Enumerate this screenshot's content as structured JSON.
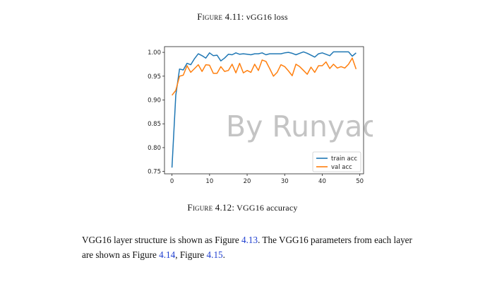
{
  "captions": {
    "top": {
      "label": "Figure 4.11:",
      "text": " vGG16 loss"
    },
    "bottom": {
      "label": "Figure 4.12:",
      "text": " VGG16 accuracy"
    }
  },
  "watermark": "By Runyao",
  "paragraph": {
    "line1_a": "VGG16 layer structure is shown as Figure ",
    "ref1": "4.13",
    "line1_b": ". The VGG16 parameters from each layer",
    "line2_a": "are shown as Figure ",
    "ref2": "4.14",
    "line2_b": ", Figure ",
    "ref3": "4.15",
    "line2_c": "."
  },
  "colors": {
    "train": "#1f77b4",
    "val": "#ff7f0e",
    "link": "#1f3fd0"
  },
  "chart_data": {
    "type": "line",
    "title": "",
    "xlabel": "",
    "ylabel": "",
    "xlim": [
      -2,
      51
    ],
    "ylim": [
      0.745,
      1.012
    ],
    "xticks": [
      0,
      10,
      20,
      30,
      40,
      50
    ],
    "yticks": [
      0.75,
      0.8,
      0.85,
      0.9,
      0.95,
      1.0
    ],
    "xtick_labels": [
      "0",
      "10",
      "20",
      "30",
      "40",
      "50"
    ],
    "ytick_labels": [
      "0.75",
      "0.80",
      "0.85",
      "0.90",
      "0.95",
      "1.00"
    ],
    "legend": "lower-right",
    "grid": false,
    "x": [
      0,
      1,
      2,
      3,
      4,
      5,
      6,
      7,
      8,
      9,
      10,
      11,
      12,
      13,
      14,
      15,
      16,
      17,
      18,
      19,
      20,
      21,
      22,
      23,
      24,
      25,
      26,
      27,
      28,
      29,
      30,
      31,
      32,
      33,
      34,
      35,
      36,
      37,
      38,
      39,
      40,
      41,
      42,
      43,
      44,
      45,
      46,
      47,
      48,
      49
    ],
    "series": [
      {
        "name": "train acc",
        "color": "#1f77b4",
        "values": [
          0.758,
          0.91,
          0.965,
          0.963,
          0.977,
          0.974,
          0.987,
          0.997,
          0.993,
          0.988,
          0.999,
          0.993,
          0.994,
          0.982,
          0.988,
          0.996,
          0.995,
          0.999,
          0.996,
          0.997,
          0.996,
          0.995,
          0.997,
          0.997,
          0.999,
          0.995,
          0.997,
          0.997,
          0.997,
          0.997,
          0.999,
          1.0,
          0.998,
          0.995,
          0.998,
          1.001,
          0.998,
          0.994,
          0.99,
          0.997,
          0.999,
          0.996,
          0.993,
          1.001,
          1.001,
          1.001,
          1.001,
          1.001,
          0.992,
          0.999
        ]
      },
      {
        "name": "val acc",
        "color": "#ff7f0e",
        "values": [
          0.91,
          0.92,
          0.95,
          0.952,
          0.972,
          0.958,
          0.966,
          0.974,
          0.96,
          0.974,
          0.973,
          0.956,
          0.956,
          0.97,
          0.96,
          0.962,
          0.975,
          0.957,
          0.977,
          0.957,
          0.962,
          0.958,
          0.975,
          0.962,
          0.984,
          0.981,
          0.966,
          0.95,
          0.958,
          0.974,
          0.97,
          0.961,
          0.951,
          0.975,
          0.97,
          0.962,
          0.954,
          0.969,
          0.958,
          0.972,
          0.972,
          0.98,
          0.966,
          0.975,
          0.967,
          0.97,
          0.967,
          0.975,
          0.988,
          0.965
        ]
      }
    ]
  }
}
